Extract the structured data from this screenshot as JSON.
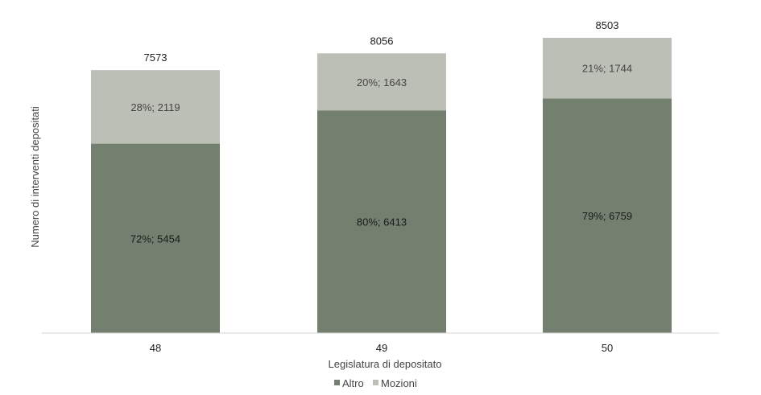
{
  "chart_data": {
    "type": "bar",
    "stacked": true,
    "categories": [
      "48",
      "49",
      "50"
    ],
    "series": [
      {
        "name": "Altro",
        "values": [
          5454,
          6413,
          6759
        ],
        "labels": [
          "72%; 5454",
          "80%; 6413",
          "79%; 6759"
        ],
        "color": "#738070",
        "label_color": "#1a1a1a"
      },
      {
        "name": "Mozioni",
        "values": [
          2119,
          1643,
          1744
        ],
        "labels": [
          "28%; 2119",
          "20%; 1643",
          "21%; 1744"
        ],
        "color": "#bcbfb6",
        "label_color": "#444444"
      }
    ],
    "totals": [
      "7573",
      "8056",
      "8503"
    ],
    "xlabel": "Legislatura di depositato",
    "ylabel": "Numero di interventi depositati",
    "ylim": [
      0,
      8503
    ],
    "grid": false,
    "legend_position": "bottom"
  }
}
